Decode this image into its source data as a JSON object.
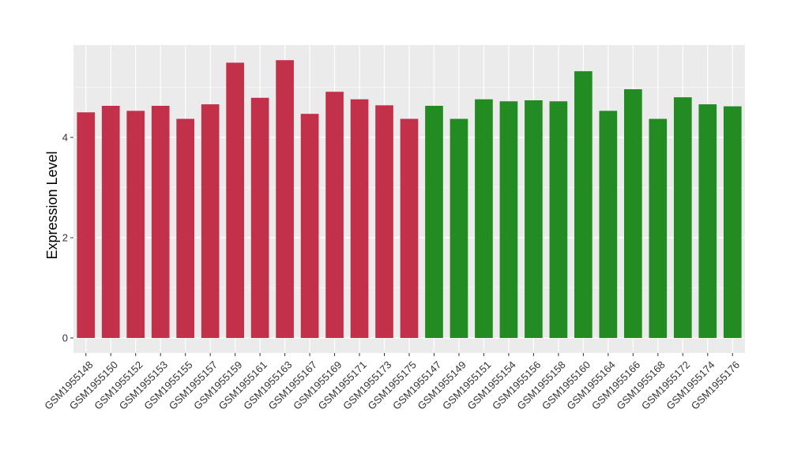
{
  "chart_data": {
    "type": "bar",
    "title": "",
    "xlabel": "",
    "ylabel": "Expression Level",
    "ylim": [
      0,
      5.85
    ],
    "yticks": [
      0,
      2,
      4
    ],
    "grid": true,
    "legend": "none",
    "categories": [
      "GSM1955148",
      "GSM1955150",
      "GSM1955152",
      "GSM1955153",
      "GSM1955155",
      "GSM1955157",
      "GSM1955159",
      "GSM1955161",
      "GSM1955163",
      "GSM1955167",
      "GSM1955169",
      "GSM1955171",
      "GSM1955173",
      "GSM1955175",
      "GSM1955147",
      "GSM1955149",
      "GSM1955151",
      "GSM1955154",
      "GSM1955156",
      "GSM1955158",
      "GSM1955160",
      "GSM1955164",
      "GSM1955166",
      "GSM1955168",
      "GSM1955172",
      "GSM1955174",
      "GSM1955176"
    ],
    "values": [
      4.5,
      4.63,
      4.53,
      4.63,
      4.37,
      4.66,
      5.49,
      4.79,
      5.54,
      4.47,
      4.91,
      4.76,
      4.64,
      4.37,
      4.63,
      4.37,
      4.76,
      4.72,
      4.74,
      4.72,
      5.32,
      4.53,
      4.96,
      4.37,
      4.8,
      4.66,
      4.62
    ],
    "groups": [
      0,
      0,
      0,
      0,
      0,
      0,
      0,
      0,
      0,
      0,
      0,
      0,
      0,
      0,
      1,
      1,
      1,
      1,
      1,
      1,
      1,
      1,
      1,
      1,
      1,
      1,
      1
    ],
    "colors": {
      "group_0": "#C3304A",
      "group_1": "#228B22",
      "panel_background": "#EBEBEB",
      "grid_line": "#FFFFFF"
    }
  }
}
